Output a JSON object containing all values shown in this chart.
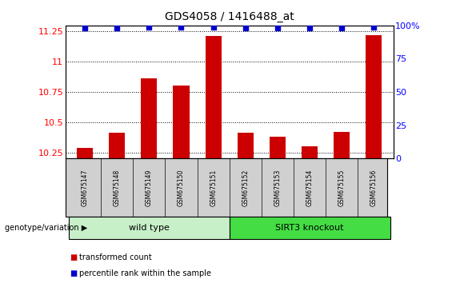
{
  "title": "GDS4058 / 1416488_at",
  "samples": [
    "GSM675147",
    "GSM675148",
    "GSM675149",
    "GSM675150",
    "GSM675151",
    "GSM675152",
    "GSM675153",
    "GSM675154",
    "GSM675155",
    "GSM675156"
  ],
  "transformed_counts": [
    10.29,
    10.41,
    10.86,
    10.8,
    11.21,
    10.41,
    10.38,
    10.3,
    10.42,
    11.22
  ],
  "percentile_ranks": [
    98,
    98,
    99,
    99,
    99,
    98,
    98,
    98,
    98,
    99
  ],
  "ylim_left": [
    10.2,
    11.3
  ],
  "ylim_right": [
    0,
    100
  ],
  "yticks_left": [
    10.25,
    10.5,
    10.75,
    11.0,
    11.25
  ],
  "yticks_right": [
    0,
    25,
    50,
    75,
    100
  ],
  "ytick_labels_left": [
    "10.25",
    "10.5",
    "10.75",
    "11",
    "11.25"
  ],
  "ytick_labels_right": [
    "0",
    "25",
    "50",
    "75",
    "100%"
  ],
  "bar_color": "#cc0000",
  "dot_color": "#0000cc",
  "bar_bottom": 10.2,
  "wt_color": "#c8f0c8",
  "ko_color": "#44dd44",
  "groups": [
    {
      "label": "wild type",
      "start": 0,
      "end": 4
    },
    {
      "label": "SIRT3 knockout",
      "start": 5,
      "end": 9
    }
  ],
  "group_label_prefix": "genotype/variation",
  "legend_items": [
    {
      "color": "#cc0000",
      "label": "transformed count"
    },
    {
      "color": "#0000cc",
      "label": "percentile rank within the sample"
    }
  ],
  "label_area_color": "#d0d0d0"
}
